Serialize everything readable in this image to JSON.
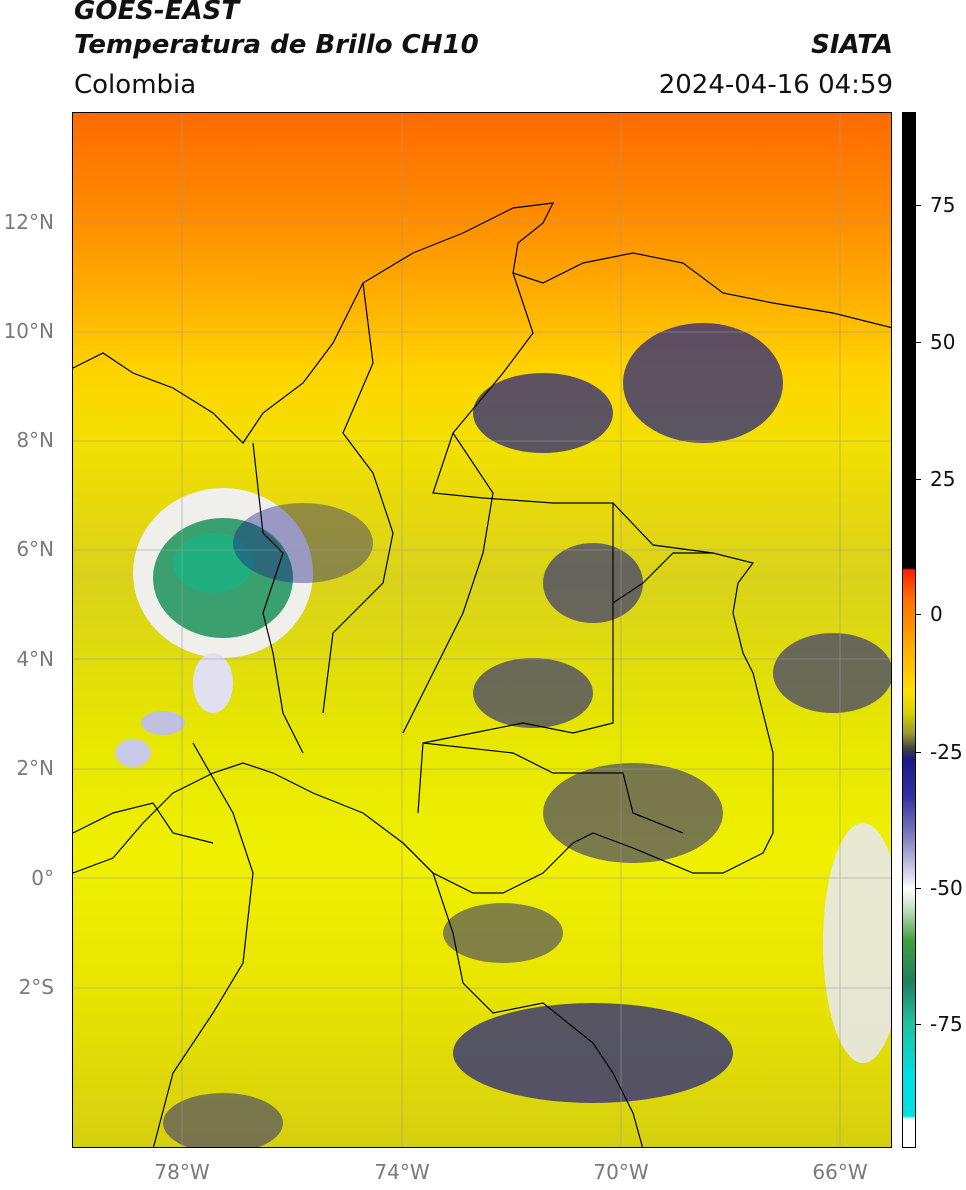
{
  "header": {
    "satellite": "GOES-EAST",
    "product": "Temperatura de Brillo CH10",
    "agency": "SIATA",
    "region": "Colombia",
    "datetime": "2024-04-16 04:59"
  },
  "map": {
    "lat_labels": [
      "12°N",
      "10°N",
      "8°N",
      "6°N",
      "4°N",
      "2°N",
      "0°",
      "2°S"
    ],
    "lon_labels": [
      "78°W",
      "74°W",
      "70°W",
      "66°W"
    ]
  },
  "colorbar": {
    "tick_labels": [
      "75",
      "50",
      "25",
      "0",
      "-25",
      "-50",
      "-75"
    ],
    "colors": {
      "high": "#000000",
      "warm": "#ff6a00",
      "mid": "#e6e600",
      "cold": "#1a1a8a",
      "coldest": "#00e0e0"
    }
  }
}
